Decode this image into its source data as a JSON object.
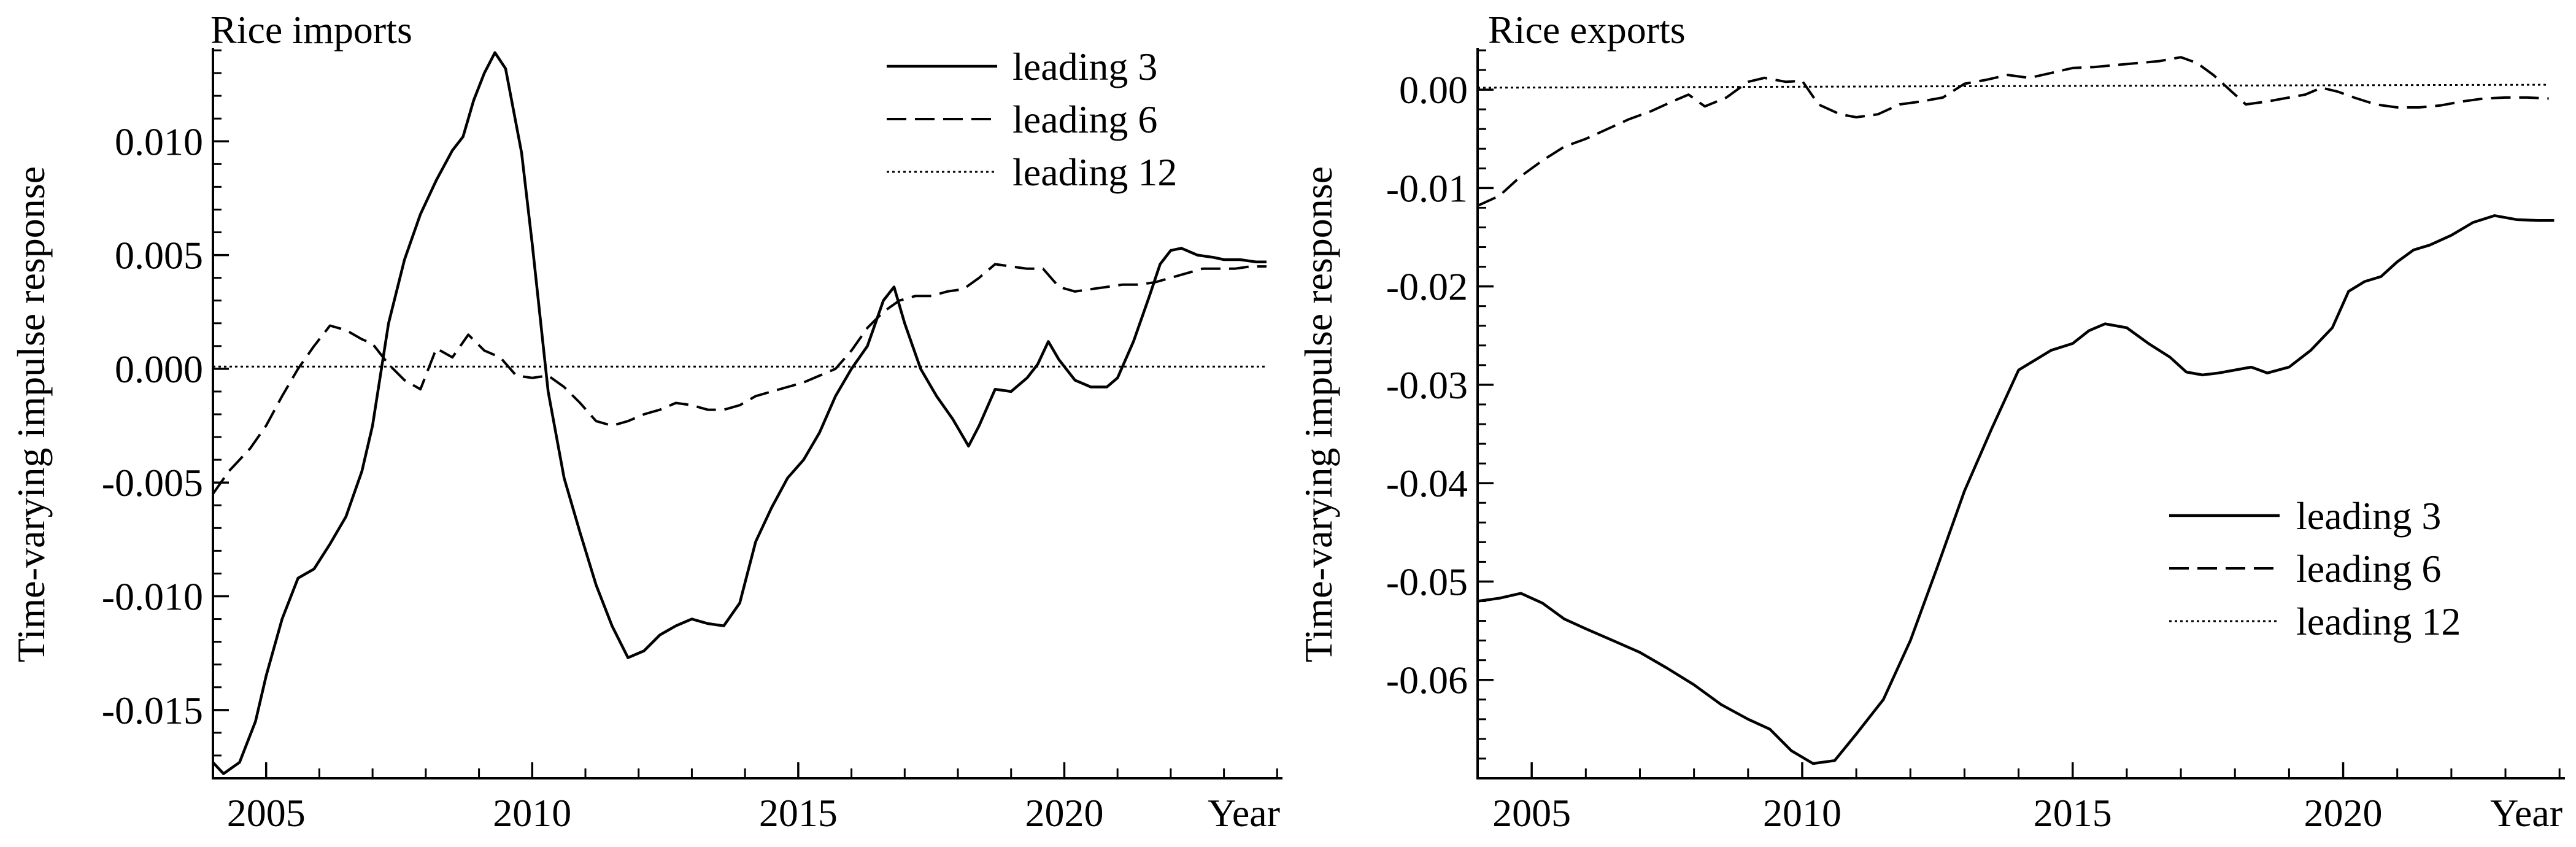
{
  "chart_data": [
    {
      "type": "line",
      "title": "Rice imports",
      "xlabel": "Year",
      "ylabel": "Time-varying impulse response",
      "xlim": [
        2004,
        2024.1
      ],
      "ylim": [
        -0.018,
        0.014
      ],
      "xticks": [
        2005,
        2010,
        2015,
        2020
      ],
      "xtick_labels": [
        "2005",
        "2010",
        "2015",
        "2020"
      ],
      "yticks": [
        -0.015,
        -0.01,
        -0.005,
        0.0,
        0.005,
        0.01
      ],
      "ytick_labels": [
        "-0.015",
        "-0.010",
        "-0.005",
        "0.000",
        "0.005",
        "0.010"
      ],
      "legend_position": "top-right",
      "series": [
        {
          "name": "leading 3",
          "style": "solid",
          "x": [
            2004.0,
            2004.2,
            2004.5,
            2004.8,
            2005.0,
            2005.3,
            2005.6,
            2005.9,
            2006.2,
            2006.5,
            2006.8,
            2007.0,
            2007.3,
            2007.6,
            2007.9,
            2008.2,
            2008.5,
            2008.7,
            2008.9,
            2009.1,
            2009.3,
            2009.5,
            2009.8,
            2010.0,
            2010.3,
            2010.6,
            2010.9,
            2011.2,
            2011.5,
            2011.8,
            2012.1,
            2012.4,
            2012.7,
            2013.0,
            2013.3,
            2013.6,
            2013.9,
            2014.2,
            2014.5,
            2014.8,
            2015.1,
            2015.4,
            2015.7,
            2016.0,
            2016.3,
            2016.6,
            2016.8,
            2017.0,
            2017.3,
            2017.6,
            2017.9,
            2018.2,
            2018.4,
            2018.7,
            2019.0,
            2019.3,
            2019.5,
            2019.7,
            2019.9,
            2020.2,
            2020.5,
            2020.8,
            2021.0,
            2021.3,
            2021.6,
            2021.8,
            2022.0,
            2022.2,
            2022.5,
            2022.8,
            2023.0,
            2023.3,
            2023.6,
            2023.8
          ],
          "y": [
            -0.0173,
            -0.0178,
            -0.0173,
            -0.0155,
            -0.0135,
            -0.011,
            -0.0092,
            -0.0088,
            -0.0077,
            -0.0065,
            -0.0045,
            -0.0025,
            0.002,
            0.0048,
            0.0068,
            0.0083,
            0.0096,
            0.0102,
            0.0118,
            0.013,
            0.0139,
            0.0132,
            0.0095,
            0.0055,
            -0.001,
            -0.0048,
            -0.0072,
            -0.0095,
            -0.0113,
            -0.0127,
            -0.0124,
            -0.0117,
            -0.0113,
            -0.011,
            -0.0112,
            -0.0113,
            -0.0103,
            -0.0076,
            -0.0061,
            -0.0048,
            -0.004,
            -0.0028,
            -0.0012,
            0.0,
            0.001,
            0.003,
            0.0036,
            0.002,
            0.0,
            -0.0012,
            -0.0022,
            -0.0034,
            -0.0025,
            -0.0009,
            -0.001,
            -0.0004,
            0.0002,
            0.0012,
            0.0004,
            -0.0005,
            -0.0008,
            -0.0008,
            -0.0004,
            0.0012,
            0.0032,
            0.0046,
            0.0052,
            0.0053,
            0.005,
            0.0049,
            0.0048,
            0.0048,
            0.0047,
            0.0047
          ]
        },
        {
          "name": "leading 6",
          "style": "dashed",
          "x": [
            2004.0,
            2004.3,
            2004.7,
            2005.0,
            2005.3,
            2005.6,
            2005.9,
            2006.2,
            2006.5,
            2006.8,
            2007.0,
            2007.3,
            2007.6,
            2007.9,
            2008.2,
            2008.5,
            2008.8,
            2009.1,
            2009.4,
            2009.7,
            2010.0,
            2010.3,
            2010.6,
            2010.9,
            2011.2,
            2011.5,
            2011.8,
            2012.1,
            2012.4,
            2012.7,
            2013.0,
            2013.3,
            2013.6,
            2013.9,
            2014.2,
            2014.5,
            2014.8,
            2015.1,
            2015.4,
            2015.7,
            2016.0,
            2016.3,
            2016.6,
            2016.9,
            2017.2,
            2017.5,
            2017.8,
            2018.1,
            2018.4,
            2018.7,
            2019.0,
            2019.3,
            2019.6,
            2019.9,
            2020.2,
            2020.5,
            2020.8,
            2021.1,
            2021.4,
            2021.7,
            2022.0,
            2022.3,
            2022.6,
            2022.9,
            2023.2,
            2023.5,
            2023.8
          ],
          "y": [
            -0.0055,
            -0.0045,
            -0.0035,
            -0.0025,
            -0.0012,
            0.0,
            0.001,
            0.0019,
            0.0017,
            0.0013,
            0.0011,
            0.0002,
            -0.0005,
            -0.0009,
            0.0009,
            0.0005,
            0.0015,
            0.0008,
            0.0005,
            -0.0003,
            -0.0004,
            -0.0003,
            -0.0008,
            -0.0015,
            -0.0023,
            -0.0025,
            -0.0023,
            -0.002,
            -0.0018,
            -0.0015,
            -0.0016,
            -0.0018,
            -0.0018,
            -0.0016,
            -0.0012,
            -0.001,
            -0.0008,
            -0.0006,
            -0.0003,
            0.0,
            0.0008,
            0.0018,
            0.0025,
            0.003,
            0.0032,
            0.0032,
            0.0034,
            0.0035,
            0.004,
            0.0046,
            0.0045,
            0.0044,
            0.0044,
            0.0036,
            0.0034,
            0.0035,
            0.0036,
            0.0037,
            0.0037,
            0.0038,
            0.004,
            0.0042,
            0.0044,
            0.0044,
            0.0044,
            0.0045,
            0.0045
          ]
        },
        {
          "name": "leading 12",
          "style": "dotted",
          "x": [
            2004.0,
            2010.0,
            2016.0,
            2023.8
          ],
          "y": [
            0.0001,
            0.0001,
            0.0001,
            0.0001
          ]
        }
      ]
    },
    {
      "type": "line",
      "title": "Rice exports",
      "xlabel": "Year",
      "ylabel": "Time-varying impulse response",
      "xlim": [
        2004,
        2024.1
      ],
      "ylim": [
        -0.07,
        0.004
      ],
      "xticks": [
        2005,
        2010,
        2015,
        2020
      ],
      "xtick_labels": [
        "2005",
        "2010",
        "2015",
        "2020"
      ],
      "yticks": [
        -0.06,
        -0.05,
        -0.04,
        -0.03,
        -0.02,
        -0.01,
        0.0
      ],
      "ytick_labels": [
        "-0.06",
        "-0.05",
        "-0.04",
        "-0.03",
        "-0.02",
        "-0.01",
        "0.00"
      ],
      "legend_position": "bottom-right",
      "series": [
        {
          "name": "leading 3",
          "style": "solid",
          "x": [
            2004.0,
            2004.4,
            2004.8,
            2005.2,
            2005.6,
            2006.0,
            2006.5,
            2007.0,
            2007.5,
            2008.0,
            2008.5,
            2009.0,
            2009.4,
            2009.8,
            2010.2,
            2010.6,
            2011.0,
            2011.5,
            2012.0,
            2012.5,
            2013.0,
            2013.5,
            2014.0,
            2014.3,
            2014.6,
            2015.0,
            2015.3,
            2015.6,
            2016.0,
            2016.4,
            2016.8,
            2017.1,
            2017.4,
            2017.7,
            2018.0,
            2018.3,
            2018.6,
            2019.0,
            2019.4,
            2019.8,
            2020.1,
            2020.4,
            2020.7,
            2021.0,
            2021.3,
            2021.6,
            2022.0,
            2022.4,
            2022.8,
            2023.2,
            2023.6,
            2023.9
          ],
          "y": [
            -0.052,
            -0.0517,
            -0.0512,
            -0.0522,
            -0.0538,
            -0.0548,
            -0.056,
            -0.0572,
            -0.0588,
            -0.0605,
            -0.0625,
            -0.064,
            -0.065,
            -0.0672,
            -0.0685,
            -0.0682,
            -0.0655,
            -0.062,
            -0.056,
            -0.0485,
            -0.0408,
            -0.0345,
            -0.0285,
            -0.0275,
            -0.0265,
            -0.0258,
            -0.0245,
            -0.0238,
            -0.0242,
            -0.0258,
            -0.0272,
            -0.0287,
            -0.029,
            -0.0288,
            -0.0285,
            -0.0282,
            -0.0288,
            -0.0282,
            -0.0265,
            -0.0242,
            -0.0205,
            -0.0195,
            -0.019,
            -0.0175,
            -0.0163,
            -0.0158,
            -0.0148,
            -0.0135,
            -0.0128,
            -0.0132,
            -0.0133,
            -0.0133
          ]
        },
        {
          "name": "leading 6",
          "style": "dashed",
          "x": [
            2004.0,
            2004.4,
            2004.8,
            2005.2,
            2005.6,
            2006.0,
            2006.4,
            2006.8,
            2007.2,
            2007.6,
            2007.9,
            2008.2,
            2008.6,
            2009.0,
            2009.3,
            2009.7,
            2010.0,
            2010.3,
            2010.7,
            2011.0,
            2011.4,
            2011.8,
            2012.2,
            2012.6,
            2013.0,
            2013.4,
            2013.8,
            2014.2,
            2014.6,
            2015.0,
            2015.4,
            2015.8,
            2016.2,
            2016.6,
            2017.0,
            2017.3,
            2017.6,
            2017.9,
            2018.2,
            2018.6,
            2019.0,
            2019.3,
            2019.6,
            2019.9,
            2020.2,
            2020.6,
            2021.0,
            2021.4,
            2021.8,
            2022.2,
            2022.6,
            2023.0,
            2023.4,
            2023.8
          ],
          "y": [
            -0.0118,
            -0.0108,
            -0.0088,
            -0.0072,
            -0.0058,
            -0.005,
            -0.004,
            -0.003,
            -0.0022,
            -0.0012,
            -0.0005,
            -0.0017,
            -0.0008,
            0.0008,
            0.0012,
            0.0008,
            0.0009,
            -0.0015,
            -0.0025,
            -0.0028,
            -0.0025,
            -0.0015,
            -0.0012,
            -0.0008,
            0.0006,
            0.001,
            0.0015,
            0.0012,
            0.0017,
            0.0022,
            0.0023,
            0.0025,
            0.0027,
            0.0029,
            0.0033,
            0.0027,
            0.0015,
            0.0,
            -0.0015,
            -0.0012,
            -0.0008,
            -0.0005,
            0.0002,
            -0.0002,
            -0.0008,
            -0.0015,
            -0.0018,
            -0.0018,
            -0.0016,
            -0.0012,
            -0.0009,
            -0.0008,
            -0.0008,
            -0.0009
          ]
        },
        {
          "name": "leading 12",
          "style": "dotted",
          "x": [
            2004.0,
            2010.0,
            2016.0,
            2023.8
          ],
          "y": [
            0.0002,
            0.0003,
            0.0004,
            0.0005
          ]
        }
      ]
    }
  ]
}
